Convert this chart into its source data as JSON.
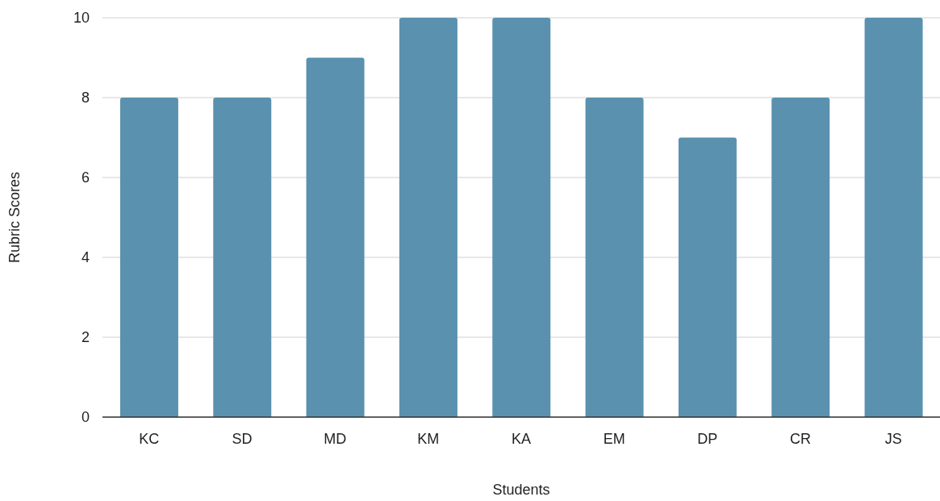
{
  "chart_data": {
    "type": "bar",
    "xlabel": "Students",
    "ylabel": "Rubric Scores",
    "categories": [
      "KC",
      "SD",
      "MD",
      "KM",
      "KA",
      "EM",
      "DP",
      "CR",
      "JS"
    ],
    "values": [
      8,
      8,
      9,
      10,
      10,
      8,
      7,
      8,
      10
    ],
    "color": "#5a91ae",
    "ylim": [
      0,
      10
    ],
    "yticks": [
      0,
      2,
      4,
      6,
      8,
      10
    ],
    "grid": "y"
  }
}
